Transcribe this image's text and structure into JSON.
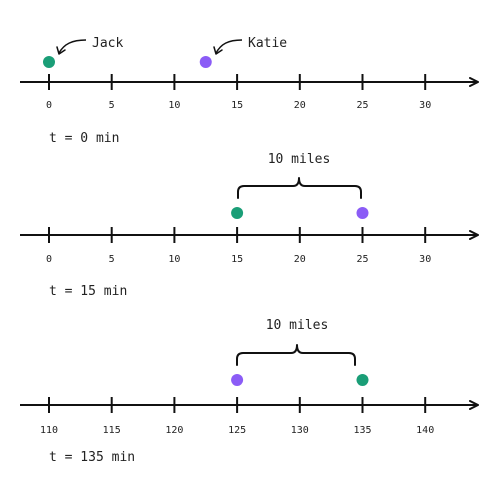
{
  "colors": {
    "jack": "#1a9e77",
    "katie": "#8b5cf6",
    "line": "#111111",
    "text": "#222222"
  },
  "diagrams": [
    {
      "time_label": "t = 0 min",
      "ticks": [
        "0",
        "5",
        "10",
        "15",
        "20",
        "25",
        "30"
      ],
      "jack_position": 0,
      "katie_position": 12.5,
      "jack_name": "Jack",
      "katie_name": "Katie",
      "gap_label": ""
    },
    {
      "time_label": "t = 15 min",
      "ticks": [
        "0",
        "5",
        "10",
        "15",
        "20",
        "25",
        "30"
      ],
      "jack_position": 15,
      "katie_position": 25,
      "gap_label": "10 miles"
    },
    {
      "time_label": "t = 135 min",
      "ticks": [
        "110",
        "115",
        "120",
        "125",
        "130",
        "135",
        "140"
      ],
      "jack_position": 135,
      "katie_position": 125,
      "gap_label": "10 miles"
    }
  ]
}
